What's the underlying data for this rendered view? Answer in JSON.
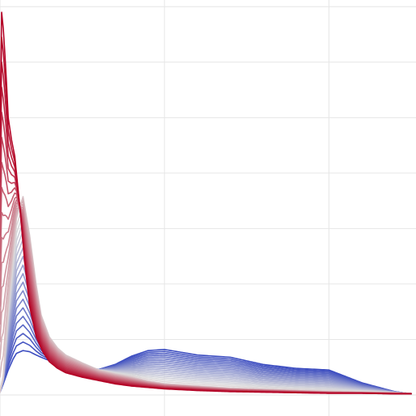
{
  "chart_data": {
    "type": "line",
    "title": "",
    "xlabel": "",
    "ylabel": "",
    "xlim": [
      0,
      2.5
    ],
    "ylim": [
      0,
      7.5
    ],
    "grid": true,
    "legend": "none",
    "x_gridlines": [
      0,
      1,
      2
    ],
    "y_gridlines": [
      0,
      1,
      2,
      3,
      4,
      5,
      6,
      7
    ],
    "colormap": [
      "#3b4cc0",
      "#dddcdc",
      "#b40426"
    ],
    "series_count": 34,
    "series": [
      {
        "x": [
          0,
          0.02,
          0.05,
          0.08,
          0.1,
          0.14,
          0.18,
          0.22,
          0.25,
          0.3,
          0.35,
          0.4,
          0.5,
          0.6,
          0.7,
          0.8,
          0.9,
          1.0,
          1.2,
          1.4,
          1.6,
          1.8,
          2.0,
          2.2,
          2.4,
          2.5
        ],
        "y": [
          0.05,
          0.2,
          0.45,
          0.65,
          0.75,
          0.8,
          0.78,
          0.72,
          0.68,
          0.62,
          0.58,
          0.55,
          0.5,
          0.46,
          0.55,
          0.7,
          0.8,
          0.82,
          0.72,
          0.68,
          0.55,
          0.48,
          0.45,
          0.22,
          0.06,
          0.02
        ]
      },
      {
        "x": [
          0,
          0.02,
          0.05,
          0.08,
          0.1,
          0.14,
          0.18,
          0.22,
          0.25,
          0.3,
          0.35,
          0.4,
          0.5,
          0.6,
          0.7,
          0.8,
          0.9,
          1.0,
          1.2,
          1.4,
          1.6,
          1.8,
          2.0,
          2.2,
          2.4,
          2.5
        ],
        "y": [
          0.05,
          0.35,
          1.6,
          2.6,
          3.2,
          3.6,
          2.9,
          2.0,
          1.45,
          1.05,
          0.85,
          0.72,
          0.58,
          0.45,
          0.38,
          0.32,
          0.25,
          0.2,
          0.16,
          0.12,
          0.1,
          0.08,
          0.06,
          0.05,
          0.04,
          0.03
        ]
      },
      {
        "x": [
          0,
          0.01,
          0.02,
          0.035,
          0.05,
          0.07,
          0.09,
          0.12,
          0.15,
          0.18,
          0.22,
          0.26,
          0.3,
          0.35,
          0.4,
          0.5,
          0.6,
          0.7,
          0.8,
          1.0,
          1.2,
          1.4,
          1.6,
          1.8,
          2.0,
          2.2,
          2.4,
          2.5
        ],
        "y": [
          4.8,
          6.9,
          6.6,
          5.9,
          5.0,
          4.6,
          4.3,
          3.4,
          2.4,
          1.6,
          1.05,
          0.78,
          0.6,
          0.48,
          0.4,
          0.32,
          0.26,
          0.2,
          0.16,
          0.11,
          0.08,
          0.06,
          0.05,
          0.04,
          0.03,
          0.03,
          0.02,
          0.02
        ]
      }
    ]
  }
}
